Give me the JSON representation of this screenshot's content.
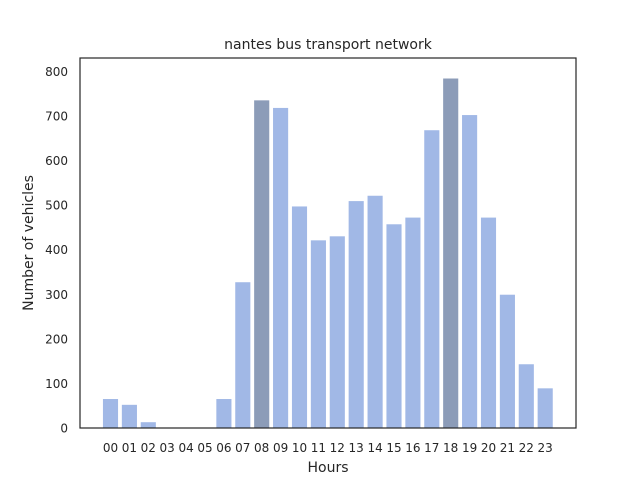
{
  "chart_data": {
    "type": "bar",
    "title": "nantes bus transport network",
    "xlabel": "Hours",
    "ylabel": "Number of vehicles",
    "categories": [
      "00",
      "01",
      "02",
      "03",
      "04",
      "05",
      "06",
      "07",
      "08",
      "09",
      "10",
      "11",
      "12",
      "13",
      "14",
      "15",
      "16",
      "17",
      "18",
      "19",
      "20",
      "21",
      "22",
      "23"
    ],
    "values": [
      65,
      52,
      13,
      0,
      0,
      0,
      65,
      327,
      735,
      718,
      497,
      421,
      430,
      509,
      521,
      457,
      472,
      668,
      784,
      702,
      472,
      299,
      143,
      89
    ],
    "highlighted_categories": [
      "08",
      "18"
    ],
    "ylim": [
      0,
      830
    ],
    "yticks": [
      0,
      100,
      200,
      300,
      400,
      500,
      600,
      700,
      800
    ],
    "grid": false,
    "legend": "none",
    "colors": {
      "bar": "#a1b8e6",
      "bar_highlight": "#8c9cb8",
      "axes": "#262626",
      "text": "#262626",
      "background": "#ffffff"
    }
  }
}
